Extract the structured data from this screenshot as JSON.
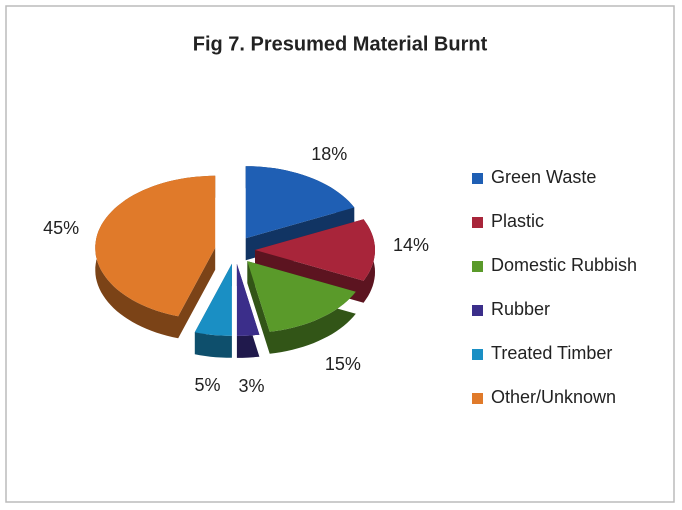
{
  "chart_data": {
    "type": "pie",
    "title": "Fig 7. Presumed Material Burnt",
    "categories": [
      "Green Waste",
      "Plastic",
      "Domestic Rubbish",
      "Rubber",
      "Treated Timber",
      "Other/Unknown"
    ],
    "values": [
      18,
      14,
      15,
      3,
      5,
      45
    ],
    "value_labels": [
      "18%",
      "14%",
      "15%",
      "3%",
      "5%",
      "45%"
    ],
    "colors": [
      "#1f5fb4",
      "#a8253a",
      "#5a9a2a",
      "#3b2e8a",
      "#1a8fc4",
      "#e07a2a"
    ],
    "legend": "right"
  }
}
